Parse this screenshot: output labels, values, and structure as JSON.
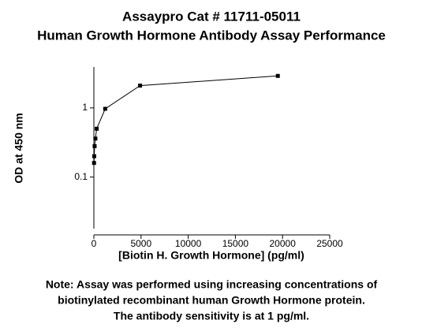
{
  "chart_data": {
    "type": "line",
    "title": [
      "Assaypro Cat # 11711-05011",
      "Human Growth Hormone Antibody Assay Performance"
    ],
    "x_label": "[Biotin H. Growth Hormone] (pg/ml)",
    "y_label": "OD at 450 nm",
    "yscale": "log",
    "x": [
      20,
      40,
      80,
      160,
      300,
      1200,
      4900,
      19500
    ],
    "series": [
      {
        "color": "#000000",
        "values": [
          0.16,
          0.2,
          0.28,
          0.36,
          0.5,
          0.97,
          2.1,
          2.9
        ]
      }
    ],
    "xlim": [
      0,
      25000
    ],
    "xticks": [
      0,
      5000,
      10000,
      15000,
      20000,
      25000
    ],
    "ylim": [
      0.018,
      3.9
    ],
    "yticks": [
      0.1,
      1
    ],
    "note": [
      "Note: Assay was performed using increasing concentrations of",
      "biotinylated recombinant human Growth Hormone protein.",
      "The antibody sensitivity is at 1 pg/ml."
    ]
  }
}
